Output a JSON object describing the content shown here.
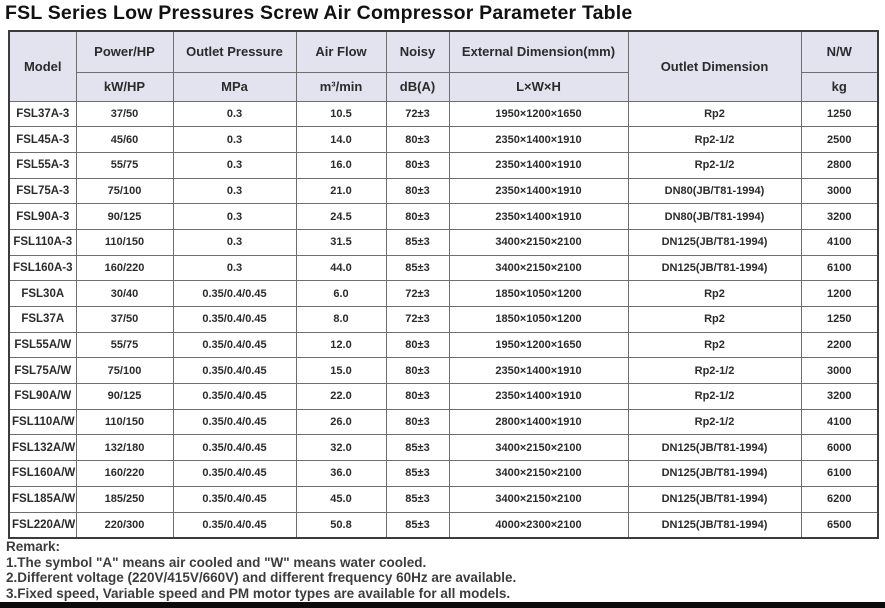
{
  "title": "FSL Series Low Pressures Screw Air Compressor Parameter Table",
  "colors": {
    "header_bg": "#e3e2ef",
    "border_dark": "#3c3c3c",
    "border_light": "#6e6e6e"
  },
  "table": {
    "headers": {
      "model": "Model",
      "power": "Power/HP",
      "power_unit": "kW/HP",
      "pressure": "Outlet Pressure",
      "pressure_unit": "MPa",
      "airflow": "Air Flow",
      "airflow_unit": "m³/min",
      "noisy": "Noisy",
      "noisy_unit": "dB(A)",
      "dimension": "External Dimension(mm)",
      "dimension_unit": "L×W×H",
      "outlet": "Outlet Dimension",
      "nw": "N/W",
      "nw_unit": "kg"
    },
    "rows": [
      [
        "FSL37A-3",
        "37/50",
        "0.3",
        "10.5",
        "72±3",
        "1950×1200×1650",
        "Rp2",
        "1250"
      ],
      [
        "FSL45A-3",
        "45/60",
        "0.3",
        "14.0",
        "80±3",
        "2350×1400×1910",
        "Rp2-1/2",
        "2500"
      ],
      [
        "FSL55A-3",
        "55/75",
        "0.3",
        "16.0",
        "80±3",
        "2350×1400×1910",
        "Rp2-1/2",
        "2800"
      ],
      [
        "FSL75A-3",
        "75/100",
        "0.3",
        "21.0",
        "80±3",
        "2350×1400×1910",
        "DN80(JB/T81-1994)",
        "3000"
      ],
      [
        "FSL90A-3",
        "90/125",
        "0.3",
        "24.5",
        "80±3",
        "2350×1400×1910",
        "DN80(JB/T81-1994)",
        "3200"
      ],
      [
        "FSL110A-3",
        "110/150",
        "0.3",
        "31.5",
        "85±3",
        "3400×2150×2100",
        "DN125(JB/T81-1994)",
        "4100"
      ],
      [
        "FSL160A-3",
        "160/220",
        "0.3",
        "44.0",
        "85±3",
        "3400×2150×2100",
        "DN125(JB/T81-1994)",
        "6100"
      ],
      [
        "FSL30A",
        "30/40",
        "0.35/0.4/0.45",
        "6.0",
        "72±3",
        "1850×1050×1200",
        "Rp2",
        "1200"
      ],
      [
        "FSL37A",
        "37/50",
        "0.35/0.4/0.45",
        "8.0",
        "72±3",
        "1850×1050×1200",
        "Rp2",
        "1250"
      ],
      [
        "FSL55A/W",
        "55/75",
        "0.35/0.4/0.45",
        "12.0",
        "80±3",
        "1950×1200×1650",
        "Rp2",
        "2200"
      ],
      [
        "FSL75A/W",
        "75/100",
        "0.35/0.4/0.45",
        "15.0",
        "80±3",
        "2350×1400×1910",
        "Rp2-1/2",
        "3000"
      ],
      [
        "FSL90A/W",
        "90/125",
        "0.35/0.4/0.45",
        "22.0",
        "80±3",
        "2350×1400×1910",
        "Rp2-1/2",
        "3200"
      ],
      [
        "FSL110A/W",
        "110/150",
        "0.35/0.4/0.45",
        "26.0",
        "80±3",
        "2800×1400×1910",
        "Rp2-1/2",
        "4100"
      ],
      [
        "FSL132A/W",
        "132/180",
        "0.35/0.4/0.45",
        "32.0",
        "85±3",
        "3400×2150×2100",
        "DN125(JB/T81-1994)",
        "6000"
      ],
      [
        "FSL160A/W",
        "160/220",
        "0.35/0.4/0.45",
        "36.0",
        "85±3",
        "3400×2150×2100",
        "DN125(JB/T81-1994)",
        "6100"
      ],
      [
        "FSL185A/W",
        "185/250",
        "0.35/0.4/0.45",
        "45.0",
        "85±3",
        "3400×2150×2100",
        "DN125(JB/T81-1994)",
        "6200"
      ],
      [
        "FSL220A/W",
        "220/300",
        "0.35/0.4/0.45",
        "50.8",
        "85±3",
        "4000×2300×2100",
        "DN125(JB/T81-1994)",
        "6500"
      ]
    ]
  },
  "remark": {
    "title": "Remark:",
    "lines": [
      "1.The symbol \"A\" means air cooled and \"W\" means water cooled.",
      "2.Different voltage (220V/415V/660V) and different frequency 60Hz are available.",
      "3.Fixed speed, Variable speed and PM motor types are available for all models."
    ]
  }
}
